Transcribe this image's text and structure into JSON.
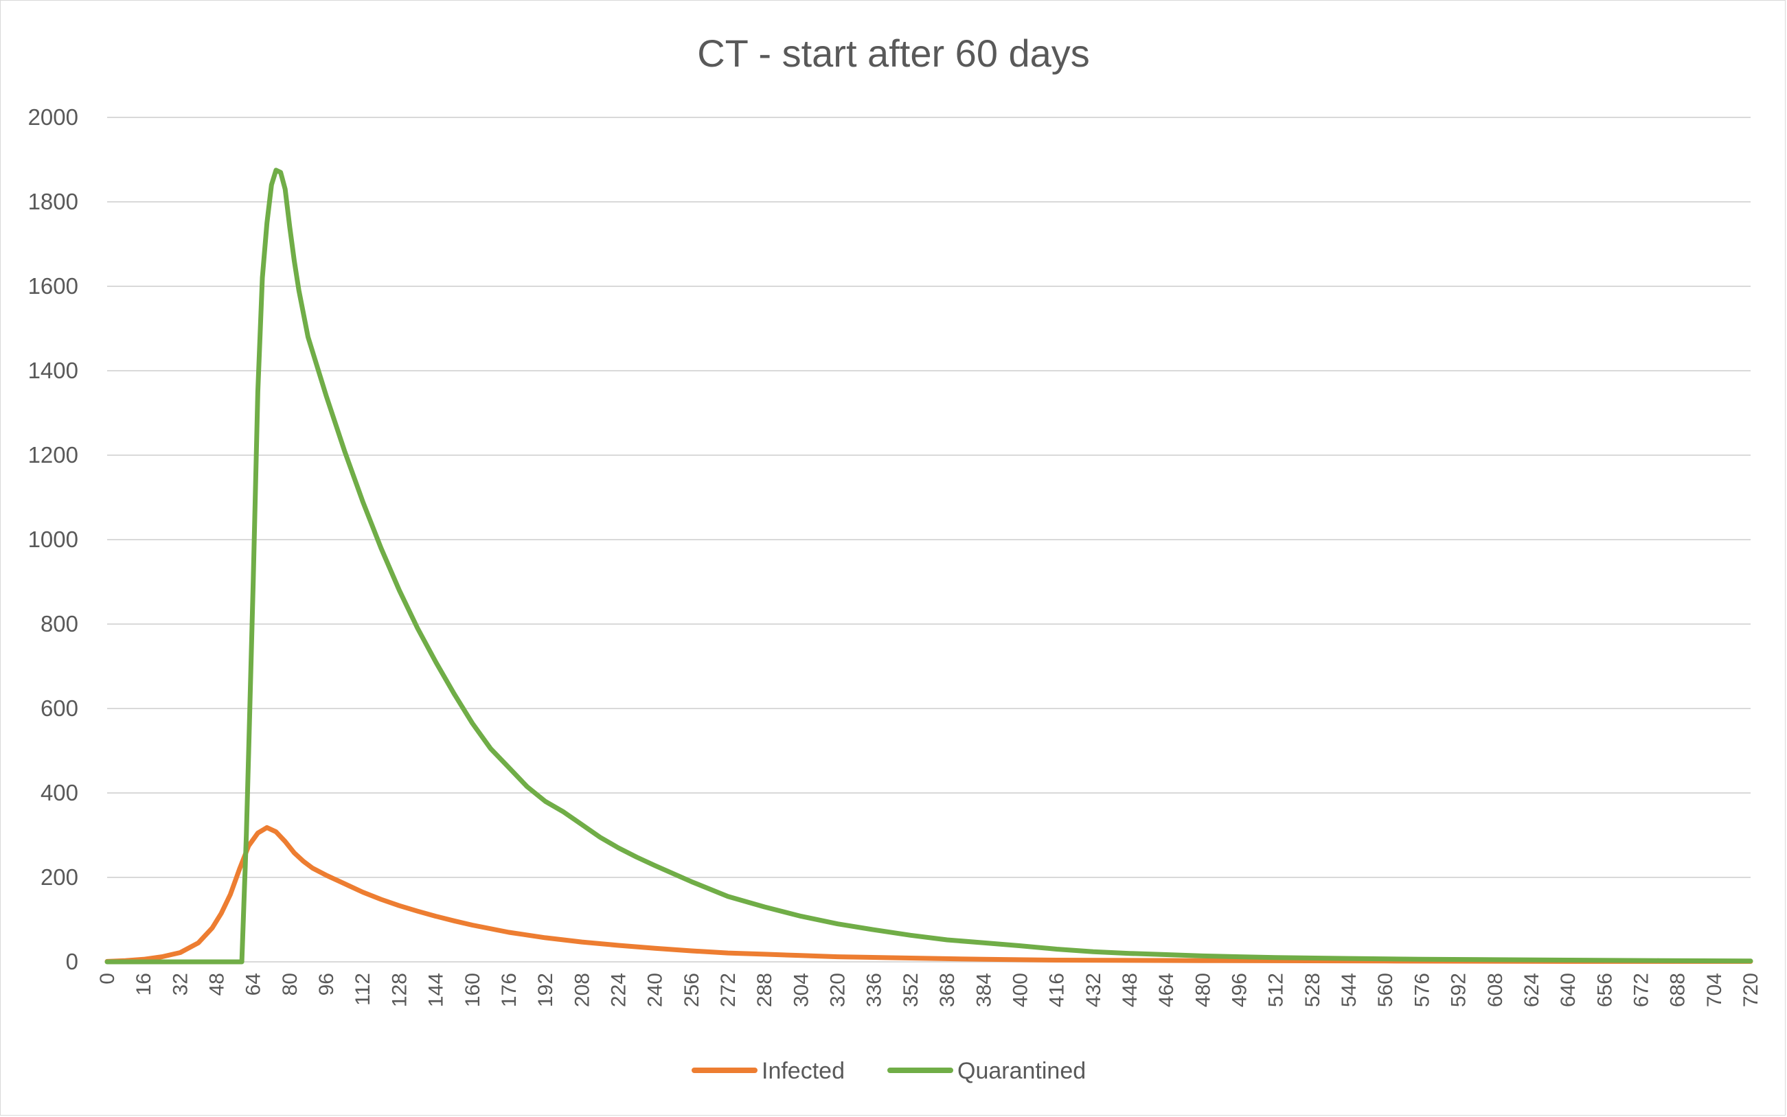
{
  "chart_data": {
    "type": "line",
    "title": "CT - start after 60 days",
    "xlabel": "",
    "ylabel": "",
    "xlim": [
      0,
      720
    ],
    "ylim": [
      0,
      2000
    ],
    "y_ticks": [
      0,
      200,
      400,
      600,
      800,
      1000,
      1200,
      1400,
      1600,
      1800,
      2000
    ],
    "x_ticks": [
      0,
      16,
      32,
      48,
      64,
      80,
      96,
      112,
      128,
      144,
      160,
      176,
      192,
      208,
      224,
      240,
      256,
      272,
      288,
      304,
      320,
      336,
      352,
      368,
      384,
      400,
      416,
      432,
      448,
      464,
      480,
      496,
      512,
      528,
      544,
      560,
      576,
      592,
      608,
      624,
      640,
      656,
      672,
      688,
      704,
      720
    ],
    "grid": true,
    "legend": "bottom-center",
    "series": [
      {
        "name": "Infected",
        "color": "#ED7D31",
        "points": [
          [
            0,
            1
          ],
          [
            8,
            3
          ],
          [
            16,
            6
          ],
          [
            24,
            12
          ],
          [
            32,
            22
          ],
          [
            40,
            45
          ],
          [
            46,
            80
          ],
          [
            50,
            115
          ],
          [
            54,
            160
          ],
          [
            58,
            220
          ],
          [
            62,
            275
          ],
          [
            66,
            305
          ],
          [
            70,
            318
          ],
          [
            74,
            308
          ],
          [
            78,
            285
          ],
          [
            82,
            258
          ],
          [
            86,
            238
          ],
          [
            90,
            222
          ],
          [
            96,
            205
          ],
          [
            104,
            185
          ],
          [
            112,
            165
          ],
          [
            120,
            148
          ],
          [
            128,
            133
          ],
          [
            136,
            120
          ],
          [
            144,
            108
          ],
          [
            152,
            97
          ],
          [
            160,
            87
          ],
          [
            176,
            70
          ],
          [
            192,
            57
          ],
          [
            208,
            47
          ],
          [
            224,
            39
          ],
          [
            240,
            32
          ],
          [
            256,
            26
          ],
          [
            272,
            21
          ],
          [
            288,
            18
          ],
          [
            304,
            15
          ],
          [
            320,
            12
          ],
          [
            352,
            9
          ],
          [
            384,
            6
          ],
          [
            416,
            4
          ],
          [
            480,
            3
          ],
          [
            560,
            2
          ],
          [
            640,
            1
          ],
          [
            720,
            1
          ]
        ]
      },
      {
        "name": "Quarantined",
        "color": "#70AD47",
        "points": [
          [
            0,
            0
          ],
          [
            56,
            0
          ],
          [
            59,
            0
          ],
          [
            60,
            150
          ],
          [
            61,
            300
          ],
          [
            62,
            500
          ],
          [
            64,
            900
          ],
          [
            66,
            1350
          ],
          [
            68,
            1620
          ],
          [
            70,
            1750
          ],
          [
            72,
            1840
          ],
          [
            74,
            1875
          ],
          [
            76,
            1870
          ],
          [
            78,
            1830
          ],
          [
            80,
            1740
          ],
          [
            82,
            1660
          ],
          [
            84,
            1590
          ],
          [
            88,
            1480
          ],
          [
            96,
            1340
          ],
          [
            104,
            1210
          ],
          [
            112,
            1090
          ],
          [
            120,
            980
          ],
          [
            128,
            880
          ],
          [
            136,
            790
          ],
          [
            144,
            710
          ],
          [
            152,
            635
          ],
          [
            160,
            565
          ],
          [
            168,
            505
          ],
          [
            176,
            460
          ],
          [
            184,
            415
          ],
          [
            192,
            380
          ],
          [
            200,
            355
          ],
          [
            208,
            325
          ],
          [
            216,
            295
          ],
          [
            224,
            270
          ],
          [
            232,
            248
          ],
          [
            240,
            228
          ],
          [
            256,
            190
          ],
          [
            272,
            155
          ],
          [
            288,
            130
          ],
          [
            304,
            108
          ],
          [
            320,
            90
          ],
          [
            336,
            76
          ],
          [
            352,
            63
          ],
          [
            368,
            52
          ],
          [
            384,
            45
          ],
          [
            400,
            38
          ],
          [
            416,
            30
          ],
          [
            432,
            24
          ],
          [
            448,
            20
          ],
          [
            464,
            17
          ],
          [
            480,
            14
          ],
          [
            496,
            12
          ],
          [
            512,
            10
          ],
          [
            544,
            8
          ],
          [
            576,
            6
          ],
          [
            608,
            5
          ],
          [
            640,
            4
          ],
          [
            680,
            3
          ],
          [
            720,
            2
          ]
        ]
      }
    ]
  }
}
